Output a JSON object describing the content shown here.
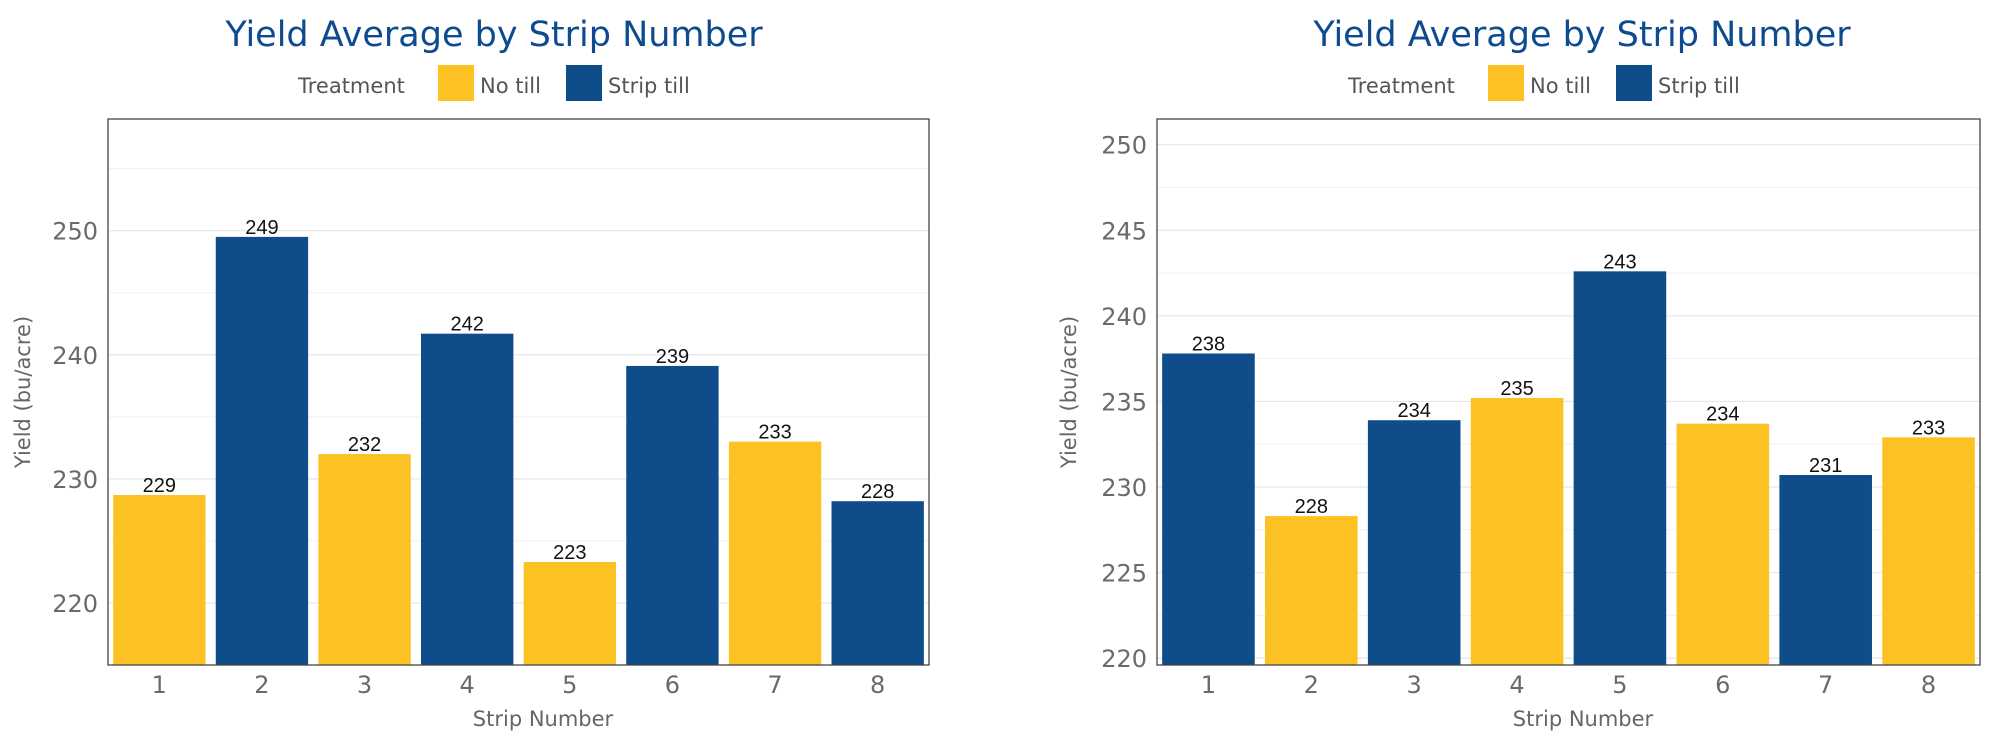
{
  "colors": {
    "no_till": "#fcc224",
    "strip_till": "#0f4c8a",
    "title": "#0d4a8f"
  },
  "chart_data": [
    {
      "type": "bar",
      "title": "Yield Average by Strip Number",
      "xlabel": "Strip Number",
      "ylabel": "Yield (bu/acre)",
      "legend": {
        "title": "Treatment",
        "placement": "top",
        "entries": [
          "No till",
          "Strip till"
        ]
      },
      "categories": [
        "1",
        "2",
        "3",
        "4",
        "5",
        "6",
        "7",
        "8"
      ],
      "values": [
        228.7,
        249.5,
        232.0,
        241.7,
        223.3,
        239.1,
        233.0,
        228.2
      ],
      "data_labels": [
        "229",
        "249",
        "232",
        "242",
        "223",
        "239",
        "233",
        "228"
      ],
      "treatments": [
        "No till",
        "Strip till",
        "No till",
        "Strip till",
        "No till",
        "Strip till",
        "No till",
        "Strip till"
      ],
      "ylim": [
        215,
        259
      ],
      "yticks": [
        220,
        230,
        240,
        250
      ],
      "grid": true
    },
    {
      "type": "bar",
      "title": "Yield Average by Strip Number",
      "xlabel": "Strip Number",
      "ylabel": "Yield (bu/acre)",
      "legend": {
        "title": "Treatment",
        "placement": "top",
        "entries": [
          "No till",
          "Strip till"
        ]
      },
      "categories": [
        "1",
        "2",
        "3",
        "4",
        "5",
        "6",
        "7",
        "8"
      ],
      "values": [
        237.8,
        228.3,
        233.9,
        235.2,
        242.6,
        233.7,
        230.7,
        232.9
      ],
      "data_labels": [
        "238",
        "228",
        "234",
        "235",
        "243",
        "234",
        "231",
        "233"
      ],
      "treatments": [
        "Strip till",
        "No till",
        "Strip till",
        "No till",
        "Strip till",
        "No till",
        "Strip till",
        "No till"
      ],
      "ylim": [
        219.6,
        251.5
      ],
      "yticks": [
        220,
        225,
        230,
        235,
        240,
        245,
        250
      ],
      "grid": true
    }
  ]
}
